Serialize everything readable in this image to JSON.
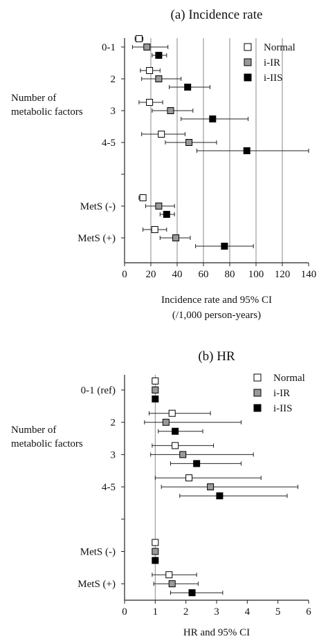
{
  "chart_data": [
    {
      "type": "forest",
      "title": "(a) Incidence rate",
      "xlabel_lines": [
        "Incidence rate and 95% CI",
        "(/1,000 person-years)"
      ],
      "ylabel_lines": [
        "Number of",
        "metabolic factors"
      ],
      "xlim": [
        0,
        140
      ],
      "xticks": [
        0,
        20,
        40,
        60,
        80,
        100,
        120,
        140
      ],
      "vlines": [
        20,
        40,
        60,
        80,
        100,
        120
      ],
      "categories": [
        "0-1",
        "2",
        "3",
        "4-5",
        "",
        "MetS (-)",
        "MetS (+)"
      ],
      "legend_position": "top-right",
      "series": [
        {
          "name": "Normal",
          "fill": "#ffffff",
          "points": [
            {
              "est": 11,
              "lo": 8,
              "hi": 14
            },
            {
              "est": 19,
              "lo": 12,
              "hi": 27
            },
            {
              "est": 19,
              "lo": 11,
              "hi": 29
            },
            {
              "est": 28,
              "lo": 13,
              "hi": 46
            },
            null,
            {
              "est": 14,
              "lo": 11,
              "hi": 16
            },
            {
              "est": 23,
              "lo": 14,
              "hi": 32
            }
          ]
        },
        {
          "name": "i-IR",
          "fill": "#999999",
          "points": [
            {
              "est": 17,
              "lo": 6,
              "hi": 33
            },
            {
              "est": 26,
              "lo": 13,
              "hi": 43
            },
            {
              "est": 35,
              "lo": 21,
              "hi": 52
            },
            {
              "est": 49,
              "lo": 31,
              "hi": 70
            },
            null,
            {
              "est": 26,
              "lo": 16,
              "hi": 38
            },
            {
              "est": 39,
              "lo": 27,
              "hi": 50
            }
          ]
        },
        {
          "name": "i-IIS",
          "fill": "#000000",
          "points": [
            {
              "est": 26,
              "lo": 21,
              "hi": 32
            },
            {
              "est": 48,
              "lo": 34,
              "hi": 65
            },
            {
              "est": 67,
              "lo": 43,
              "hi": 94
            },
            {
              "est": 93,
              "lo": 55,
              "hi": 142
            },
            null,
            {
              "est": 32,
              "lo": 27,
              "hi": 38
            },
            {
              "est": 76,
              "lo": 54,
              "hi": 98
            }
          ]
        }
      ]
    },
    {
      "type": "forest",
      "title": "(b) HR",
      "xlabel_lines": [
        "HR and 95% CI"
      ],
      "ylabel_lines": [
        "Number of",
        "metabolic factors"
      ],
      "xlim": [
        0,
        6
      ],
      "xticks": [
        0,
        1,
        2,
        3,
        4,
        5,
        6
      ],
      "vlines": [
        1
      ],
      "categories": [
        "0-1 (ref)",
        "2",
        "3",
        "4-5",
        "",
        "MetS (-)",
        "MetS (+)"
      ],
      "legend_position": "top-right",
      "series": [
        {
          "name": "Normal",
          "fill": "#ffffff",
          "points": [
            {
              "est": 1,
              "lo": 1,
              "hi": 1
            },
            {
              "est": 1.55,
              "lo": 0.8,
              "hi": 2.8
            },
            {
              "est": 1.65,
              "lo": 0.9,
              "hi": 2.9
            },
            {
              "est": 2.1,
              "lo": 1.0,
              "hi": 4.45
            },
            null,
            {
              "est": 1,
              "lo": 1,
              "hi": 1
            },
            {
              "est": 1.45,
              "lo": 0.9,
              "hi": 2.35
            }
          ]
        },
        {
          "name": "i-IR",
          "fill": "#999999",
          "points": [
            {
              "est": 1,
              "lo": 1,
              "hi": 1
            },
            {
              "est": 1.35,
              "lo": 0.65,
              "hi": 3.8
            },
            {
              "est": 1.9,
              "lo": 0.85,
              "hi": 4.2
            },
            {
              "est": 2.8,
              "lo": 1.2,
              "hi": 5.65
            },
            null,
            {
              "est": 1,
              "lo": 1,
              "hi": 1
            },
            {
              "est": 1.55,
              "lo": 0.95,
              "hi": 2.4
            }
          ]
        },
        {
          "name": "i-IIS",
          "fill": "#000000",
          "points": [
            {
              "est": 1,
              "lo": 1,
              "hi": 1
            },
            {
              "est": 1.65,
              "lo": 1.1,
              "hi": 2.55
            },
            {
              "est": 2.35,
              "lo": 1.5,
              "hi": 3.8
            },
            {
              "est": 3.1,
              "lo": 1.8,
              "hi": 5.3
            },
            null,
            {
              "est": 1,
              "lo": 1,
              "hi": 1
            },
            {
              "est": 2.2,
              "lo": 1.5,
              "hi": 3.2
            }
          ]
        }
      ]
    }
  ]
}
